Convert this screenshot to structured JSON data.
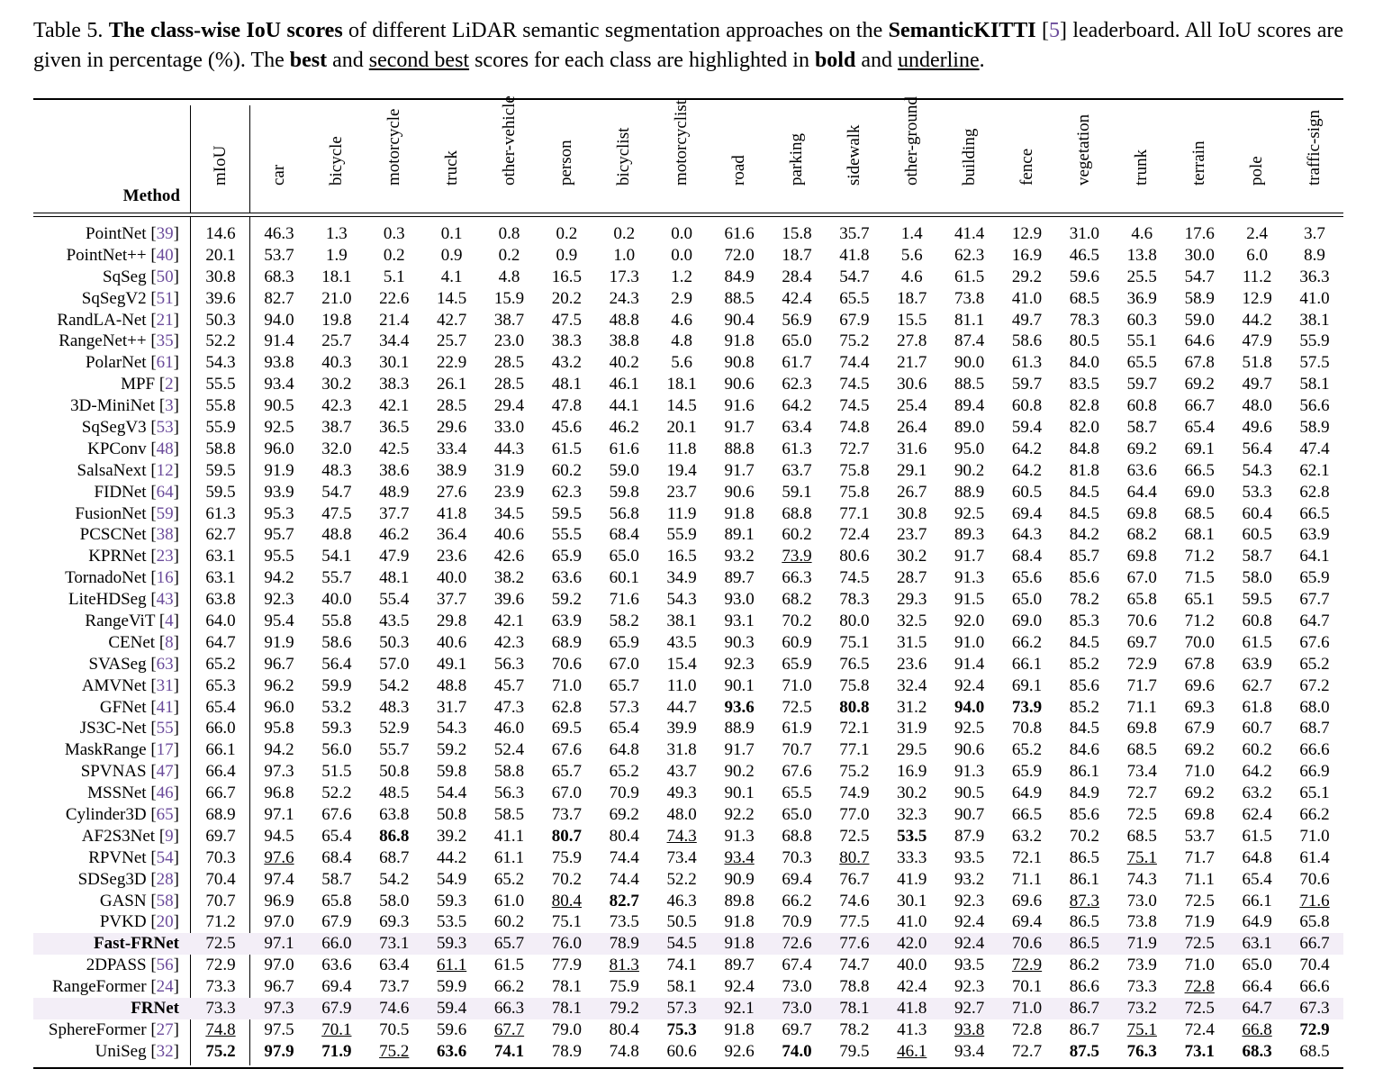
{
  "caption": {
    "label": "Table 5.",
    "bold_title": "The class-wise IoU scores",
    "text1": " of different LiDAR semantic segmentation approaches on the ",
    "dataset": "SemanticKITTI",
    "cite": "5",
    "text2": " leaderboard. All IoU scores are given in percentage (%). The ",
    "best": "best",
    "text3": " and ",
    "second": "second best",
    "text4": " scores for each class are highlighted in ",
    "bold_word": "bold",
    "text5": " and ",
    "underline_word": "underline",
    "text6": "."
  },
  "method_header": "Method",
  "columns": [
    "mIoU",
    "car",
    "bicycle",
    "motorcycle",
    "truck",
    "other-vehicle",
    "person",
    "bicyclist",
    "motorcyclist",
    "road",
    "parking",
    "sidewalk",
    "other-ground",
    "building",
    "fence",
    "vegetation",
    "trunk",
    "terrain",
    "pole",
    "traffic-sign"
  ],
  "rows": [
    {
      "name": "PointNet",
      "cite": "39",
      "values": [
        "14.6",
        "46.3",
        "1.3",
        "0.3",
        "0.1",
        "0.8",
        "0.2",
        "0.2",
        "0.0",
        "61.6",
        "15.8",
        "35.7",
        "1.4",
        "41.4",
        "12.9",
        "31.0",
        "4.6",
        "17.6",
        "2.4",
        "3.7"
      ]
    },
    {
      "name": "PointNet++",
      "cite": "40",
      "values": [
        "20.1",
        "53.7",
        "1.9",
        "0.2",
        "0.9",
        "0.2",
        "0.9",
        "1.0",
        "0.0",
        "72.0",
        "18.7",
        "41.8",
        "5.6",
        "62.3",
        "16.9",
        "46.5",
        "13.8",
        "30.0",
        "6.0",
        "8.9"
      ]
    },
    {
      "name": "SqSeg",
      "cite": "50",
      "values": [
        "30.8",
        "68.3",
        "18.1",
        "5.1",
        "4.1",
        "4.8",
        "16.5",
        "17.3",
        "1.2",
        "84.9",
        "28.4",
        "54.7",
        "4.6",
        "61.5",
        "29.2",
        "59.6",
        "25.5",
        "54.7",
        "11.2",
        "36.3"
      ]
    },
    {
      "name": "SqSegV2",
      "cite": "51",
      "values": [
        "39.6",
        "82.7",
        "21.0",
        "22.6",
        "14.5",
        "15.9",
        "20.2",
        "24.3",
        "2.9",
        "88.5",
        "42.4",
        "65.5",
        "18.7",
        "73.8",
        "41.0",
        "68.5",
        "36.9",
        "58.9",
        "12.9",
        "41.0"
      ]
    },
    {
      "name": "RandLA-Net",
      "cite": "21",
      "values": [
        "50.3",
        "94.0",
        "19.8",
        "21.4",
        "42.7",
        "38.7",
        "47.5",
        "48.8",
        "4.6",
        "90.4",
        "56.9",
        "67.9",
        "15.5",
        "81.1",
        "49.7",
        "78.3",
        "60.3",
        "59.0",
        "44.2",
        "38.1"
      ]
    },
    {
      "name": "RangeNet++",
      "cite": "35",
      "values": [
        "52.2",
        "91.4",
        "25.7",
        "34.4",
        "25.7",
        "23.0",
        "38.3",
        "38.8",
        "4.8",
        "91.8",
        "65.0",
        "75.2",
        "27.8",
        "87.4",
        "58.6",
        "80.5",
        "55.1",
        "64.6",
        "47.9",
        "55.9"
      ]
    },
    {
      "name": "PolarNet",
      "cite": "61",
      "values": [
        "54.3",
        "93.8",
        "40.3",
        "30.1",
        "22.9",
        "28.5",
        "43.2",
        "40.2",
        "5.6",
        "90.8",
        "61.7",
        "74.4",
        "21.7",
        "90.0",
        "61.3",
        "84.0",
        "65.5",
        "67.8",
        "51.8",
        "57.5"
      ]
    },
    {
      "name": "MPF",
      "cite": "2",
      "values": [
        "55.5",
        "93.4",
        "30.2",
        "38.3",
        "26.1",
        "28.5",
        "48.1",
        "46.1",
        "18.1",
        "90.6",
        "62.3",
        "74.5",
        "30.6",
        "88.5",
        "59.7",
        "83.5",
        "59.7",
        "69.2",
        "49.7",
        "58.1"
      ]
    },
    {
      "name": "3D-MiniNet",
      "cite": "3",
      "values": [
        "55.8",
        "90.5",
        "42.3",
        "42.1",
        "28.5",
        "29.4",
        "47.8",
        "44.1",
        "14.5",
        "91.6",
        "64.2",
        "74.5",
        "25.4",
        "89.4",
        "60.8",
        "82.8",
        "60.8",
        "66.7",
        "48.0",
        "56.6"
      ]
    },
    {
      "name": "SqSegV3",
      "cite": "53",
      "values": [
        "55.9",
        "92.5",
        "38.7",
        "36.5",
        "29.6",
        "33.0",
        "45.6",
        "46.2",
        "20.1",
        "91.7",
        "63.4",
        "74.8",
        "26.4",
        "89.0",
        "59.4",
        "82.0",
        "58.7",
        "65.4",
        "49.6",
        "58.9"
      ]
    },
    {
      "name": "KPConv",
      "cite": "48",
      "values": [
        "58.8",
        "96.0",
        "32.0",
        "42.5",
        "33.4",
        "44.3",
        "61.5",
        "61.6",
        "11.8",
        "88.8",
        "61.3",
        "72.7",
        "31.6",
        "95.0",
        "64.2",
        "84.8",
        "69.2",
        "69.1",
        "56.4",
        "47.4"
      ]
    },
    {
      "name": "SalsaNext",
      "cite": "12",
      "values": [
        "59.5",
        "91.9",
        "48.3",
        "38.6",
        "38.9",
        "31.9",
        "60.2",
        "59.0",
        "19.4",
        "91.7",
        "63.7",
        "75.8",
        "29.1",
        "90.2",
        "64.2",
        "81.8",
        "63.6",
        "66.5",
        "54.3",
        "62.1"
      ]
    },
    {
      "name": "FIDNet",
      "cite": "64",
      "values": [
        "59.5",
        "93.9",
        "54.7",
        "48.9",
        "27.6",
        "23.9",
        "62.3",
        "59.8",
        "23.7",
        "90.6",
        "59.1",
        "75.8",
        "26.7",
        "88.9",
        "60.5",
        "84.5",
        "64.4",
        "69.0",
        "53.3",
        "62.8"
      ]
    },
    {
      "name": "FusionNet",
      "cite": "59",
      "values": [
        "61.3",
        "95.3",
        "47.5",
        "37.7",
        "41.8",
        "34.5",
        "59.5",
        "56.8",
        "11.9",
        "91.8",
        "68.8",
        "77.1",
        "30.8",
        "92.5",
        "69.4",
        "84.5",
        "69.8",
        "68.5",
        "60.4",
        "66.5"
      ]
    },
    {
      "name": "PCSCNet",
      "cite": "38",
      "values": [
        "62.7",
        "95.7",
        "48.8",
        "46.2",
        "36.4",
        "40.6",
        "55.5",
        "68.4",
        "55.9",
        "89.1",
        "60.2",
        "72.4",
        "23.7",
        "89.3",
        "64.3",
        "84.2",
        "68.2",
        "68.1",
        "60.5",
        "63.9"
      ]
    },
    {
      "name": "KPRNet",
      "cite": "23",
      "values": [
        "63.1",
        "95.5",
        "54.1",
        "47.9",
        "23.6",
        "42.6",
        "65.9",
        "65.0",
        "16.5",
        "93.2",
        "73.9",
        "80.6",
        "30.2",
        "91.7",
        "68.4",
        "85.7",
        "69.8",
        "71.2",
        "58.7",
        "64.1"
      ],
      "second": [
        10
      ]
    },
    {
      "name": "TornadoNet",
      "cite": "16",
      "values": [
        "63.1",
        "94.2",
        "55.7",
        "48.1",
        "40.0",
        "38.2",
        "63.6",
        "60.1",
        "34.9",
        "89.7",
        "66.3",
        "74.5",
        "28.7",
        "91.3",
        "65.6",
        "85.6",
        "67.0",
        "71.5",
        "58.0",
        "65.9"
      ]
    },
    {
      "name": "LiteHDSeg",
      "cite": "43",
      "values": [
        "63.8",
        "92.3",
        "40.0",
        "55.4",
        "37.7",
        "39.6",
        "59.2",
        "71.6",
        "54.3",
        "93.0",
        "68.2",
        "78.3",
        "29.3",
        "91.5",
        "65.0",
        "78.2",
        "65.8",
        "65.1",
        "59.5",
        "67.7"
      ]
    },
    {
      "name": "RangeViT",
      "cite": "4",
      "values": [
        "64.0",
        "95.4",
        "55.8",
        "43.5",
        "29.8",
        "42.1",
        "63.9",
        "58.2",
        "38.1",
        "93.1",
        "70.2",
        "80.0",
        "32.5",
        "92.0",
        "69.0",
        "85.3",
        "70.6",
        "71.2",
        "60.8",
        "64.7"
      ]
    },
    {
      "name": "CENet",
      "cite": "8",
      "values": [
        "64.7",
        "91.9",
        "58.6",
        "50.3",
        "40.6",
        "42.3",
        "68.9",
        "65.9",
        "43.5",
        "90.3",
        "60.9",
        "75.1",
        "31.5",
        "91.0",
        "66.2",
        "84.5",
        "69.7",
        "70.0",
        "61.5",
        "67.6"
      ]
    },
    {
      "name": "SVASeg",
      "cite": "63",
      "values": [
        "65.2",
        "96.7",
        "56.4",
        "57.0",
        "49.1",
        "56.3",
        "70.6",
        "67.0",
        "15.4",
        "92.3",
        "65.9",
        "76.5",
        "23.6",
        "91.4",
        "66.1",
        "85.2",
        "72.9",
        "67.8",
        "63.9",
        "65.2"
      ]
    },
    {
      "name": "AMVNet",
      "cite": "31",
      "values": [
        "65.3",
        "96.2",
        "59.9",
        "54.2",
        "48.8",
        "45.7",
        "71.0",
        "65.7",
        "11.0",
        "90.1",
        "71.0",
        "75.8",
        "32.4",
        "92.4",
        "69.1",
        "85.6",
        "71.7",
        "69.6",
        "62.7",
        "67.2"
      ]
    },
    {
      "name": "GFNet",
      "cite": "41",
      "values": [
        "65.4",
        "96.0",
        "53.2",
        "48.3",
        "31.7",
        "47.3",
        "62.8",
        "57.3",
        "44.7",
        "93.6",
        "72.5",
        "80.8",
        "31.2",
        "94.0",
        "73.9",
        "85.2",
        "71.1",
        "69.3",
        "61.8",
        "68.0"
      ],
      "best": [
        9,
        11,
        13,
        14
      ]
    },
    {
      "name": "JS3C-Net",
      "cite": "55",
      "values": [
        "66.0",
        "95.8",
        "59.3",
        "52.9",
        "54.3",
        "46.0",
        "69.5",
        "65.4",
        "39.9",
        "88.9",
        "61.9",
        "72.1",
        "31.9",
        "92.5",
        "70.8",
        "84.5",
        "69.8",
        "67.9",
        "60.7",
        "68.7"
      ]
    },
    {
      "name": "MaskRange",
      "cite": "17",
      "values": [
        "66.1",
        "94.2",
        "56.0",
        "55.7",
        "59.2",
        "52.4",
        "67.6",
        "64.8",
        "31.8",
        "91.7",
        "70.7",
        "77.1",
        "29.5",
        "90.6",
        "65.2",
        "84.6",
        "68.5",
        "69.2",
        "60.2",
        "66.6"
      ]
    },
    {
      "name": "SPVNAS",
      "cite": "47",
      "values": [
        "66.4",
        "97.3",
        "51.5",
        "50.8",
        "59.8",
        "58.8",
        "65.7",
        "65.2",
        "43.7",
        "90.2",
        "67.6",
        "75.2",
        "16.9",
        "91.3",
        "65.9",
        "86.1",
        "73.4",
        "71.0",
        "64.2",
        "66.9"
      ]
    },
    {
      "name": "MSSNet",
      "cite": "46",
      "values": [
        "66.7",
        "96.8",
        "52.2",
        "48.5",
        "54.4",
        "56.3",
        "67.0",
        "70.9",
        "49.3",
        "90.1",
        "65.5",
        "74.9",
        "30.2",
        "90.5",
        "64.9",
        "84.9",
        "72.7",
        "69.2",
        "63.2",
        "65.1"
      ]
    },
    {
      "name": "Cylinder3D",
      "cite": "65",
      "values": [
        "68.9",
        "97.1",
        "67.6",
        "63.8",
        "50.8",
        "58.5",
        "73.7",
        "69.2",
        "48.0",
        "92.2",
        "65.0",
        "77.0",
        "32.3",
        "90.7",
        "66.5",
        "85.6",
        "72.5",
        "69.8",
        "62.4",
        "66.2"
      ]
    },
    {
      "name": "AF2S3Net",
      "cite": "9",
      "values": [
        "69.7",
        "94.5",
        "65.4",
        "86.8",
        "39.2",
        "41.1",
        "80.7",
        "80.4",
        "74.3",
        "91.3",
        "68.8",
        "72.5",
        "53.5",
        "87.9",
        "63.2",
        "70.2",
        "68.5",
        "53.7",
        "61.5",
        "71.0"
      ],
      "best": [
        3,
        6,
        12
      ],
      "second": [
        8
      ]
    },
    {
      "name": "RPVNet",
      "cite": "54",
      "values": [
        "70.3",
        "97.6",
        "68.4",
        "68.7",
        "44.2",
        "61.1",
        "75.9",
        "74.4",
        "73.4",
        "93.4",
        "70.3",
        "80.7",
        "33.3",
        "93.5",
        "72.1",
        "86.5",
        "75.1",
        "71.7",
        "64.8",
        "61.4"
      ],
      "second": [
        1,
        9,
        11,
        16
      ]
    },
    {
      "name": "SDSeg3D",
      "cite": "28",
      "values": [
        "70.4",
        "97.4",
        "58.7",
        "54.2",
        "54.9",
        "65.2",
        "70.2",
        "74.4",
        "52.2",
        "90.9",
        "69.4",
        "76.7",
        "41.9",
        "93.2",
        "71.1",
        "86.1",
        "74.3",
        "71.1",
        "65.4",
        "70.6"
      ]
    },
    {
      "name": "GASN",
      "cite": "58",
      "values": [
        "70.7",
        "96.9",
        "65.8",
        "58.0",
        "59.3",
        "61.0",
        "80.4",
        "82.7",
        "46.3",
        "89.8",
        "66.2",
        "74.6",
        "30.1",
        "92.3",
        "69.6",
        "87.3",
        "73.0",
        "72.5",
        "66.1",
        "71.6"
      ],
      "best": [
        7
      ],
      "second": [
        6,
        15,
        19
      ]
    },
    {
      "name": "PVKD",
      "cite": "20",
      "values": [
        "71.2",
        "97.0",
        "67.9",
        "69.3",
        "53.5",
        "60.2",
        "75.1",
        "73.5",
        "50.5",
        "91.8",
        "70.9",
        "77.5",
        "41.0",
        "92.4",
        "69.4",
        "86.5",
        "73.8",
        "71.9",
        "64.9",
        "65.8"
      ]
    },
    {
      "name": "Fast-FRNet",
      "cite": "",
      "highlight": true,
      "values": [
        "72.5",
        "97.1",
        "66.0",
        "73.1",
        "59.3",
        "65.7",
        "76.0",
        "78.9",
        "54.5",
        "91.8",
        "72.6",
        "77.6",
        "42.0",
        "92.4",
        "70.6",
        "86.5",
        "71.9",
        "72.5",
        "63.1",
        "66.7"
      ]
    },
    {
      "name": "2DPASS",
      "cite": "56",
      "values": [
        "72.9",
        "97.0",
        "63.6",
        "63.4",
        "61.1",
        "61.5",
        "77.9",
        "81.3",
        "74.1",
        "89.7",
        "67.4",
        "74.7",
        "40.0",
        "93.5",
        "72.9",
        "86.2",
        "73.9",
        "71.0",
        "65.0",
        "70.4"
      ],
      "second": [
        4,
        7,
        14
      ]
    },
    {
      "name": "RangeFormer",
      "cite": "24",
      "values": [
        "73.3",
        "96.7",
        "69.4",
        "73.7",
        "59.9",
        "66.2",
        "78.1",
        "75.9",
        "58.1",
        "92.4",
        "73.0",
        "78.8",
        "42.4",
        "92.3",
        "70.1",
        "86.6",
        "73.3",
        "72.8",
        "66.4",
        "66.6"
      ],
      "second": [
        17
      ]
    },
    {
      "name": "FRNet",
      "cite": "",
      "highlight": true,
      "values": [
        "73.3",
        "97.3",
        "67.9",
        "74.6",
        "59.4",
        "66.3",
        "78.1",
        "79.2",
        "57.3",
        "92.1",
        "73.0",
        "78.1",
        "41.8",
        "92.7",
        "71.0",
        "86.7",
        "73.2",
        "72.5",
        "64.7",
        "67.3"
      ]
    },
    {
      "name": "SphereFormer",
      "cite": "27",
      "values": [
        "74.8",
        "97.5",
        "70.1",
        "70.5",
        "59.6",
        "67.7",
        "79.0",
        "80.4",
        "75.3",
        "91.8",
        "69.7",
        "78.2",
        "41.3",
        "93.8",
        "72.8",
        "86.7",
        "75.1",
        "72.4",
        "66.8",
        "72.9"
      ],
      "best": [
        8,
        19
      ],
      "second": [
        0,
        2,
        5,
        13,
        16,
        18
      ]
    },
    {
      "name": "UniSeg",
      "cite": "32",
      "values": [
        "75.2",
        "97.9",
        "71.9",
        "75.2",
        "63.6",
        "74.1",
        "78.9",
        "74.8",
        "60.6",
        "92.6",
        "74.0",
        "79.5",
        "46.1",
        "93.4",
        "72.7",
        "87.5",
        "76.3",
        "73.1",
        "68.3",
        "68.5"
      ],
      "best": [
        0,
        1,
        2,
        4,
        5,
        10,
        15,
        16,
        17,
        18
      ],
      "second": [
        3,
        12
      ]
    }
  ]
}
